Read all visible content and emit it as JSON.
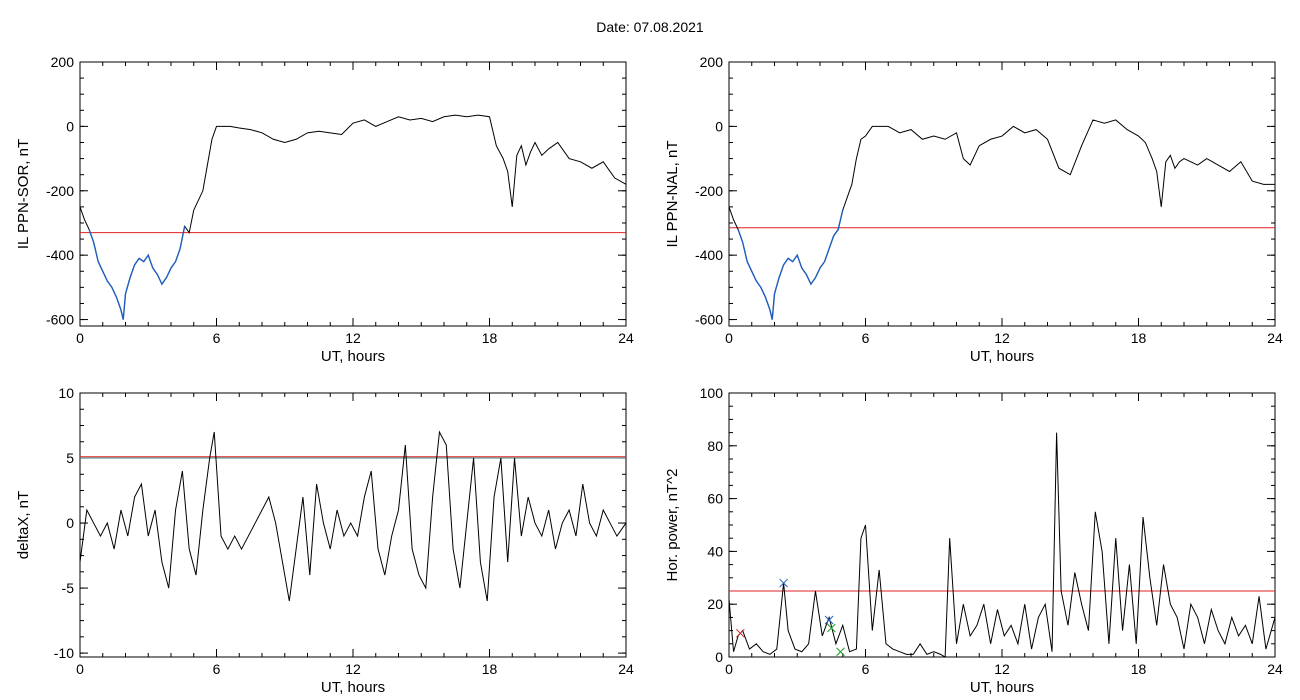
{
  "header": {
    "date_label": "Date:  07.08.2021"
  },
  "colors": {
    "data_line": "#000000",
    "highlight_line": "#1f5fbf",
    "threshold_line": "#e02020",
    "threshold_line_2": "#3a8a8a",
    "marker_blue": "#2060c0",
    "marker_red": "#d03030",
    "marker_green": "#20a020"
  },
  "chart_data": [
    {
      "type": "line",
      "id": "il-sor",
      "xlabel": "UT, hours",
      "ylabel": "IL PPN-SOR, nT",
      "xlim": [
        0,
        24
      ],
      "ylim": [
        -620,
        200
      ],
      "xticks": [
        0,
        6,
        12,
        18,
        24
      ],
      "yticks": [
        -600,
        -400,
        -200,
        0,
        200
      ],
      "threshold": -330,
      "highlight_range": [
        0.3,
        4.7
      ],
      "x": [
        0,
        0.2,
        0.4,
        0.6,
        0.8,
        1.0,
        1.2,
        1.4,
        1.6,
        1.8,
        1.9,
        2.0,
        2.2,
        2.4,
        2.6,
        2.8,
        3.0,
        3.2,
        3.4,
        3.6,
        3.8,
        4.0,
        4.2,
        4.4,
        4.6,
        4.8,
        5.0,
        5.2,
        5.4,
        5.6,
        5.8,
        6.0,
        6.3,
        6.6,
        7.0,
        7.5,
        8.0,
        8.5,
        9.0,
        9.5,
        10.0,
        10.5,
        11.0,
        11.5,
        12.0,
        12.5,
        13.0,
        13.5,
        14.0,
        14.5,
        15.0,
        15.5,
        16.0,
        16.5,
        17.0,
        17.5,
        18.0,
        18.3,
        18.6,
        18.8,
        19.0,
        19.2,
        19.4,
        19.6,
        19.8,
        20.0,
        20.3,
        20.6,
        21.0,
        21.5,
        22.0,
        22.5,
        23.0,
        23.5,
        24.0
      ],
      "values": [
        -250,
        -290,
        -320,
        -360,
        -420,
        -450,
        -480,
        -500,
        -530,
        -570,
        -600,
        -520,
        -470,
        -430,
        -410,
        -420,
        -400,
        -440,
        -460,
        -490,
        -470,
        -440,
        -420,
        -380,
        -310,
        -330,
        -260,
        -230,
        -200,
        -120,
        -40,
        0,
        0,
        0,
        -5,
        -10,
        -20,
        -40,
        -50,
        -40,
        -20,
        -15,
        -20,
        -25,
        10,
        20,
        0,
        15,
        30,
        20,
        25,
        15,
        30,
        35,
        30,
        35,
        30,
        -60,
        -100,
        -140,
        -250,
        -90,
        -60,
        -120,
        -80,
        -50,
        -90,
        -70,
        -50,
        -100,
        -110,
        -130,
        -110,
        -160,
        -180
      ]
    },
    {
      "type": "line",
      "id": "il-nal",
      "xlabel": "UT, hours",
      "ylabel": "IL PPN-NAL, nT",
      "xlim": [
        0,
        24
      ],
      "ylim": [
        -620,
        200
      ],
      "xticks": [
        0,
        6,
        12,
        18,
        24
      ],
      "yticks": [
        -600,
        -400,
        -200,
        0,
        200
      ],
      "threshold": -315,
      "highlight_range": [
        0.3,
        5.0
      ],
      "x": [
        0,
        0.2,
        0.4,
        0.6,
        0.8,
        1.0,
        1.2,
        1.4,
        1.6,
        1.8,
        1.9,
        2.0,
        2.2,
        2.4,
        2.6,
        2.8,
        3.0,
        3.2,
        3.4,
        3.6,
        3.8,
        4.0,
        4.2,
        4.4,
        4.6,
        4.8,
        5.0,
        5.2,
        5.4,
        5.6,
        5.8,
        6.0,
        6.3,
        6.6,
        7.0,
        7.5,
        8.0,
        8.5,
        9.0,
        9.5,
        10.0,
        10.3,
        10.6,
        11.0,
        11.5,
        12.0,
        12.5,
        13.0,
        13.5,
        14.0,
        14.5,
        15.0,
        15.5,
        16.0,
        16.5,
        17.0,
        17.5,
        18.0,
        18.3,
        18.6,
        18.8,
        19.0,
        19.2,
        19.4,
        19.6,
        19.8,
        20.0,
        20.3,
        20.6,
        21.0,
        21.5,
        22.0,
        22.5,
        23.0,
        23.5,
        24.0
      ],
      "values": [
        -250,
        -290,
        -320,
        -360,
        -420,
        -450,
        -480,
        -500,
        -530,
        -570,
        -600,
        -520,
        -470,
        -430,
        -410,
        -420,
        -400,
        -440,
        -460,
        -490,
        -470,
        -440,
        -420,
        -380,
        -340,
        -320,
        -260,
        -220,
        -180,
        -100,
        -40,
        -30,
        0,
        0,
        0,
        -20,
        -10,
        -40,
        -30,
        -40,
        -20,
        -100,
        -120,
        -60,
        -40,
        -30,
        0,
        -20,
        -10,
        -40,
        -130,
        -150,
        -60,
        20,
        10,
        20,
        -10,
        -30,
        -50,
        -100,
        -140,
        -250,
        -110,
        -90,
        -130,
        -110,
        -100,
        -110,
        -120,
        -100,
        -120,
        -140,
        -110,
        -170,
        -180,
        -180
      ]
    },
    {
      "type": "line",
      "id": "delta-x",
      "xlabel": "UT, hours",
      "ylabel": "deltaX, nT",
      "xlim": [
        0,
        24
      ],
      "ylim": [
        -10.3,
        10
      ],
      "xticks": [
        0,
        6,
        12,
        18,
        24
      ],
      "yticks": [
        -10,
        -5,
        0,
        5,
        10
      ],
      "threshold": 5.1,
      "threshold_2": 5.0,
      "x": [
        0,
        0.3,
        0.6,
        0.9,
        1.2,
        1.5,
        1.8,
        2.1,
        2.4,
        2.7,
        3.0,
        3.3,
        3.6,
        3.9,
        4.2,
        4.5,
        4.8,
        5.1,
        5.4,
        5.7,
        5.9,
        6.2,
        6.5,
        6.8,
        7.1,
        7.4,
        7.7,
        8.0,
        8.3,
        8.6,
        8.9,
        9.2,
        9.5,
        9.8,
        10.1,
        10.4,
        10.7,
        11.0,
        11.3,
        11.6,
        11.9,
        12.2,
        12.5,
        12.8,
        13.1,
        13.4,
        13.7,
        14.0,
        14.3,
        14.6,
        14.9,
        15.2,
        15.5,
        15.8,
        16.1,
        16.4,
        16.7,
        17.0,
        17.3,
        17.6,
        17.9,
        18.2,
        18.5,
        18.8,
        19.1,
        19.4,
        19.7,
        20.0,
        20.3,
        20.6,
        20.9,
        21.2,
        21.5,
        21.8,
        22.1,
        22.4,
        22.7,
        23.0,
        23.3,
        23.6,
        24.0
      ],
      "values": [
        -3,
        1,
        0,
        -1,
        0,
        -2,
        1,
        -1,
        2,
        3,
        -1,
        1,
        -3,
        -5,
        1,
        4,
        -2,
        -4,
        1,
        5,
        7,
        -1,
        -2,
        -1,
        -2,
        -1,
        0,
        1,
        2,
        0,
        -3,
        -6,
        -2,
        2,
        -4,
        3,
        0,
        -2,
        1,
        -1,
        0,
        -1,
        2,
        4,
        -2,
        -4,
        -1,
        1,
        6,
        -2,
        -4,
        -5,
        2,
        7,
        6,
        -2,
        -5,
        0,
        5,
        -3,
        -6,
        2,
        5,
        -3,
        5,
        -1,
        2,
        0,
        -1,
        1,
        -2,
        0,
        1,
        -1,
        3,
        0,
        -1,
        1,
        0,
        -1,
        0
      ]
    },
    {
      "type": "line",
      "id": "hor-power",
      "xlabel": "UT, hours",
      "ylabel": "Hor. power, nT^2",
      "xlim": [
        0,
        24
      ],
      "ylim": [
        0,
        100
      ],
      "xticks": [
        0,
        6,
        12,
        18,
        24
      ],
      "yticks": [
        0,
        20,
        40,
        60,
        80,
        100
      ],
      "threshold": 25,
      "x": [
        0,
        0.2,
        0.4,
        0.6,
        0.9,
        1.2,
        1.5,
        1.8,
        2.1,
        2.4,
        2.6,
        2.9,
        3.2,
        3.5,
        3.8,
        4.1,
        4.4,
        4.7,
        5.0,
        5.3,
        5.6,
        5.8,
        6.0,
        6.3,
        6.6,
        6.9,
        7.2,
        7.5,
        7.8,
        8.1,
        8.4,
        8.7,
        9.0,
        9.3,
        9.5,
        9.7,
        10.0,
        10.3,
        10.6,
        10.9,
        11.2,
        11.5,
        11.8,
        12.1,
        12.4,
        12.7,
        13.0,
        13.3,
        13.6,
        13.9,
        14.2,
        14.4,
        14.6,
        14.9,
        15.2,
        15.5,
        15.8,
        16.1,
        16.4,
        16.7,
        17.0,
        17.3,
        17.6,
        17.9,
        18.2,
        18.5,
        18.8,
        19.1,
        19.4,
        19.7,
        20.0,
        20.3,
        20.6,
        20.9,
        21.2,
        21.5,
        21.8,
        22.1,
        22.4,
        22.7,
        23.0,
        23.3,
        23.6,
        24.0
      ],
      "values": [
        22,
        2,
        8,
        10,
        3,
        5,
        2,
        1,
        3,
        28,
        10,
        3,
        2,
        5,
        25,
        8,
        15,
        5,
        12,
        2,
        3,
        45,
        50,
        10,
        33,
        5,
        3,
        2,
        1,
        1,
        5,
        1,
        2,
        1,
        0,
        45,
        5,
        20,
        8,
        12,
        20,
        5,
        18,
        8,
        12,
        5,
        20,
        3,
        15,
        20,
        2,
        85,
        25,
        12,
        32,
        20,
        10,
        55,
        40,
        5,
        45,
        10,
        35,
        5,
        53,
        30,
        12,
        35,
        20,
        15,
        3,
        20,
        15,
        5,
        18,
        10,
        5,
        15,
        8,
        12,
        5,
        23,
        3,
        15
      ]
    }
  ],
  "markers": [
    {
      "chart": "hor-power",
      "x": 2.4,
      "y": 28,
      "color": "#2060c0"
    },
    {
      "chart": "hor-power",
      "x": 4.4,
      "y": 14,
      "color": "#2060c0"
    },
    {
      "chart": "hor-power",
      "x": 4.5,
      "y": 11,
      "color": "#20a020"
    },
    {
      "chart": "hor-power",
      "x": 4.9,
      "y": 2,
      "color": "#20a020"
    },
    {
      "chart": "hor-power",
      "x": 0.5,
      "y": 9,
      "color": "#d03030"
    }
  ]
}
